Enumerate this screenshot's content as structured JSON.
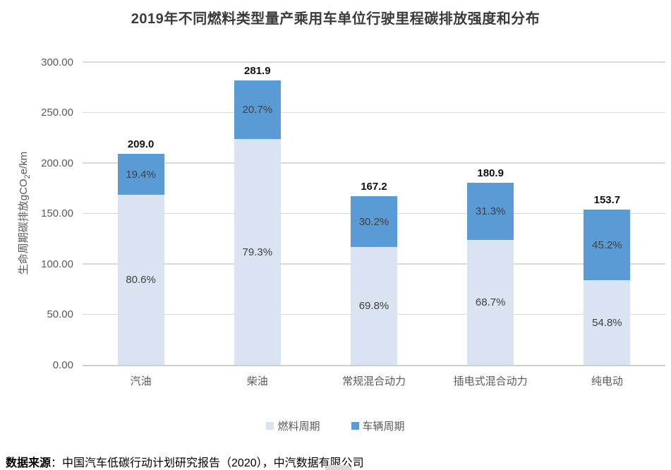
{
  "chart_data": {
    "type": "bar",
    "variant": "stacked",
    "title": "2019年不同燃料类型量产乘用车单位行驶里程碳排放强度和分布",
    "ylabel": {
      "prefix": "生命周期碳排放gCO",
      "sub": "2",
      "suffix": "e/km"
    },
    "categories": [
      "汽油",
      "柴油",
      "常规混合动力",
      "插电式混合动力",
      "纯电动"
    ],
    "totals": [
      209.0,
      281.9,
      167.2,
      180.9,
      153.7
    ],
    "total_labels": [
      "209.0",
      "281.9",
      "167.2",
      "180.9",
      "153.7"
    ],
    "series": [
      {
        "name": "燃料周期",
        "color": "#dae3f2",
        "percents": [
          80.6,
          79.3,
          69.8,
          68.7,
          54.8
        ],
        "percent_labels": [
          "80.6%",
          "79.3%",
          "69.8%",
          "68.7%",
          "54.8%"
        ]
      },
      {
        "name": "车辆周期",
        "color": "#5b9bd5",
        "percents": [
          19.4,
          20.7,
          30.2,
          31.3,
          45.2
        ],
        "percent_labels": [
          "19.4%",
          "20.7%",
          "30.2%",
          "31.3%",
          "45.2%"
        ]
      }
    ],
    "ylim": [
      0,
      300
    ],
    "ytick_values": [
      0,
      50,
      100,
      150,
      200,
      250,
      300
    ],
    "ytick_labels": [
      "0.00",
      "50.00",
      "100.00",
      "150.00",
      "200.00",
      "250.00",
      "300.00"
    ],
    "grid": "horizontal",
    "legend_position": "bottom"
  },
  "footer": {
    "source_bold": "数据来源",
    "source_rest": "：中国汽车低碳行动计划研究报告（2020），中汽数据有限公司"
  }
}
